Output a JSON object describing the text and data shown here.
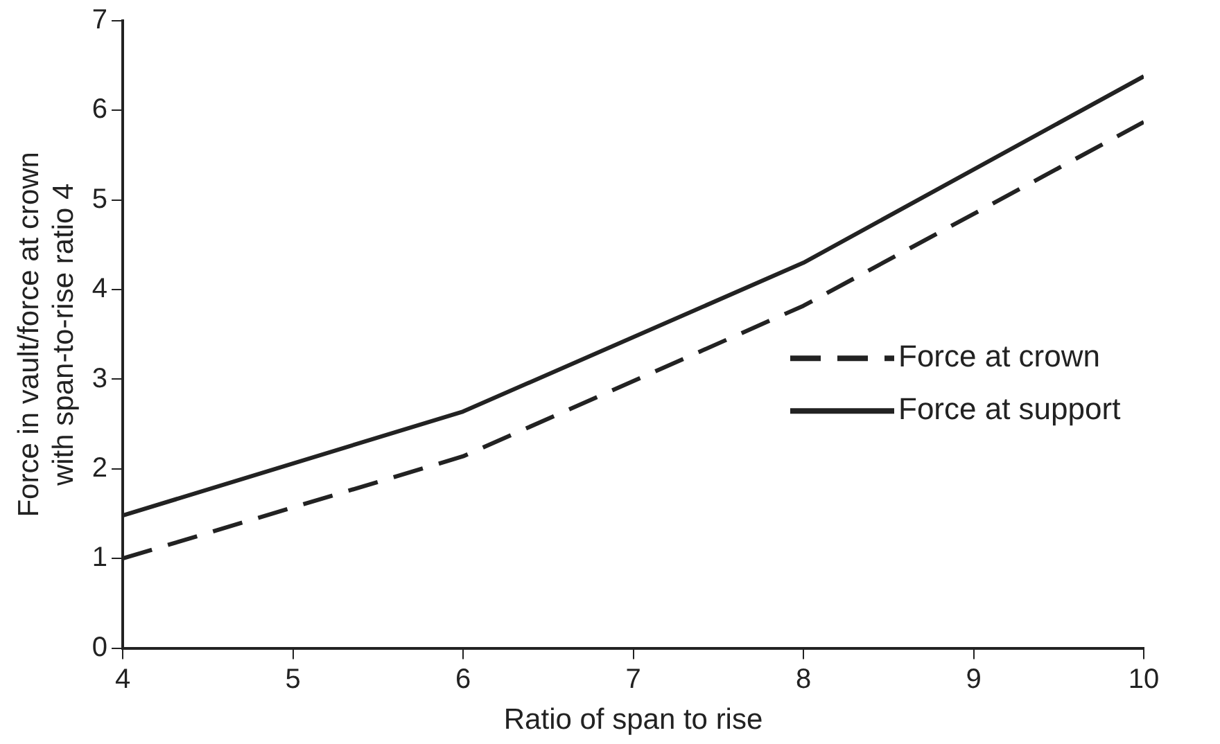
{
  "chart_data": {
    "type": "line",
    "xlabel": "Ratio of span to rise",
    "ylabel": "Force in vault/force at crown\nwith span-to-rise ratio 4",
    "x": [
      4,
      6,
      8,
      10
    ],
    "series": [
      {
        "name": "Force at crown",
        "color": "#222222",
        "line_style": "dashed",
        "values": [
          1.0,
          2.14,
          3.82,
          5.87
        ]
      },
      {
        "name": "Force at support",
        "color": "#222222",
        "line_style": "solid",
        "values": [
          1.48,
          2.64,
          4.3,
          6.38
        ]
      }
    ],
    "xlim": [
      4,
      10
    ],
    "xticks": [
      4,
      5,
      6,
      7,
      8,
      9,
      10
    ],
    "ylim": [
      0,
      7
    ],
    "yticks": [
      0,
      1,
      2,
      3,
      4,
      5,
      6,
      7
    ],
    "grid": false,
    "legend": "right",
    "marker": "none"
  }
}
